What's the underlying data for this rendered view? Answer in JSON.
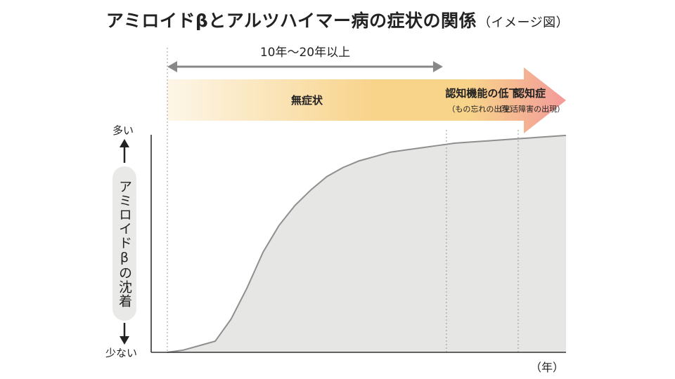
{
  "title": "アミロイドβとアルツハイマー病の症状の関係",
  "title_note": "（イメージ図）",
  "chart_data": {
    "type": "area",
    "title": "アミロイドβとアルツハイマー病の症状の関係（イメージ図）",
    "xlabel": "（年）",
    "ylabel": "アミロイドβの沈着",
    "y_top_label": "多い",
    "y_bottom_label": "少ない",
    "duration_label": "10年〜20年以上",
    "stages": [
      {
        "name": "無症状",
        "note": "",
        "start": 0,
        "end": 0.7
      },
      {
        "name": "認知機能の低下",
        "note": "（もの忘れの出現）",
        "start": 0.7,
        "end": 0.88
      },
      {
        "name": "認知症",
        "note": "（生活障害の出現）",
        "start": 0.88,
        "end": 1.0
      }
    ],
    "series": [
      {
        "x": [
          0,
          0.04,
          0.08,
          0.12,
          0.16,
          0.2,
          0.24,
          0.28,
          0.32,
          0.36,
          0.4,
          0.44,
          0.48,
          0.52,
          0.56,
          0.6,
          0.64,
          0.68,
          0.72,
          0.76,
          0.8,
          0.84,
          0.88,
          0.92,
          0.96,
          1.0
        ],
        "values": [
          0.0,
          0.01,
          0.03,
          0.05,
          0.15,
          0.29,
          0.45,
          0.57,
          0.66,
          0.73,
          0.79,
          0.83,
          0.86,
          0.88,
          0.9,
          0.91,
          0.92,
          0.93,
          0.94,
          0.945,
          0.95,
          0.955,
          0.96,
          0.965,
          0.97,
          0.975
        ]
      }
    ],
    "ylim": [
      0,
      1
    ],
    "xlim": [
      0,
      1
    ],
    "grid": false,
    "colors": {
      "fill": "#e6e6e4",
      "line": "#8f8f8f",
      "arrow": "#888888",
      "band_start": "#fdf6e8",
      "band_mid": "#f8d38a",
      "band_end": "#f39a9a"
    }
  }
}
